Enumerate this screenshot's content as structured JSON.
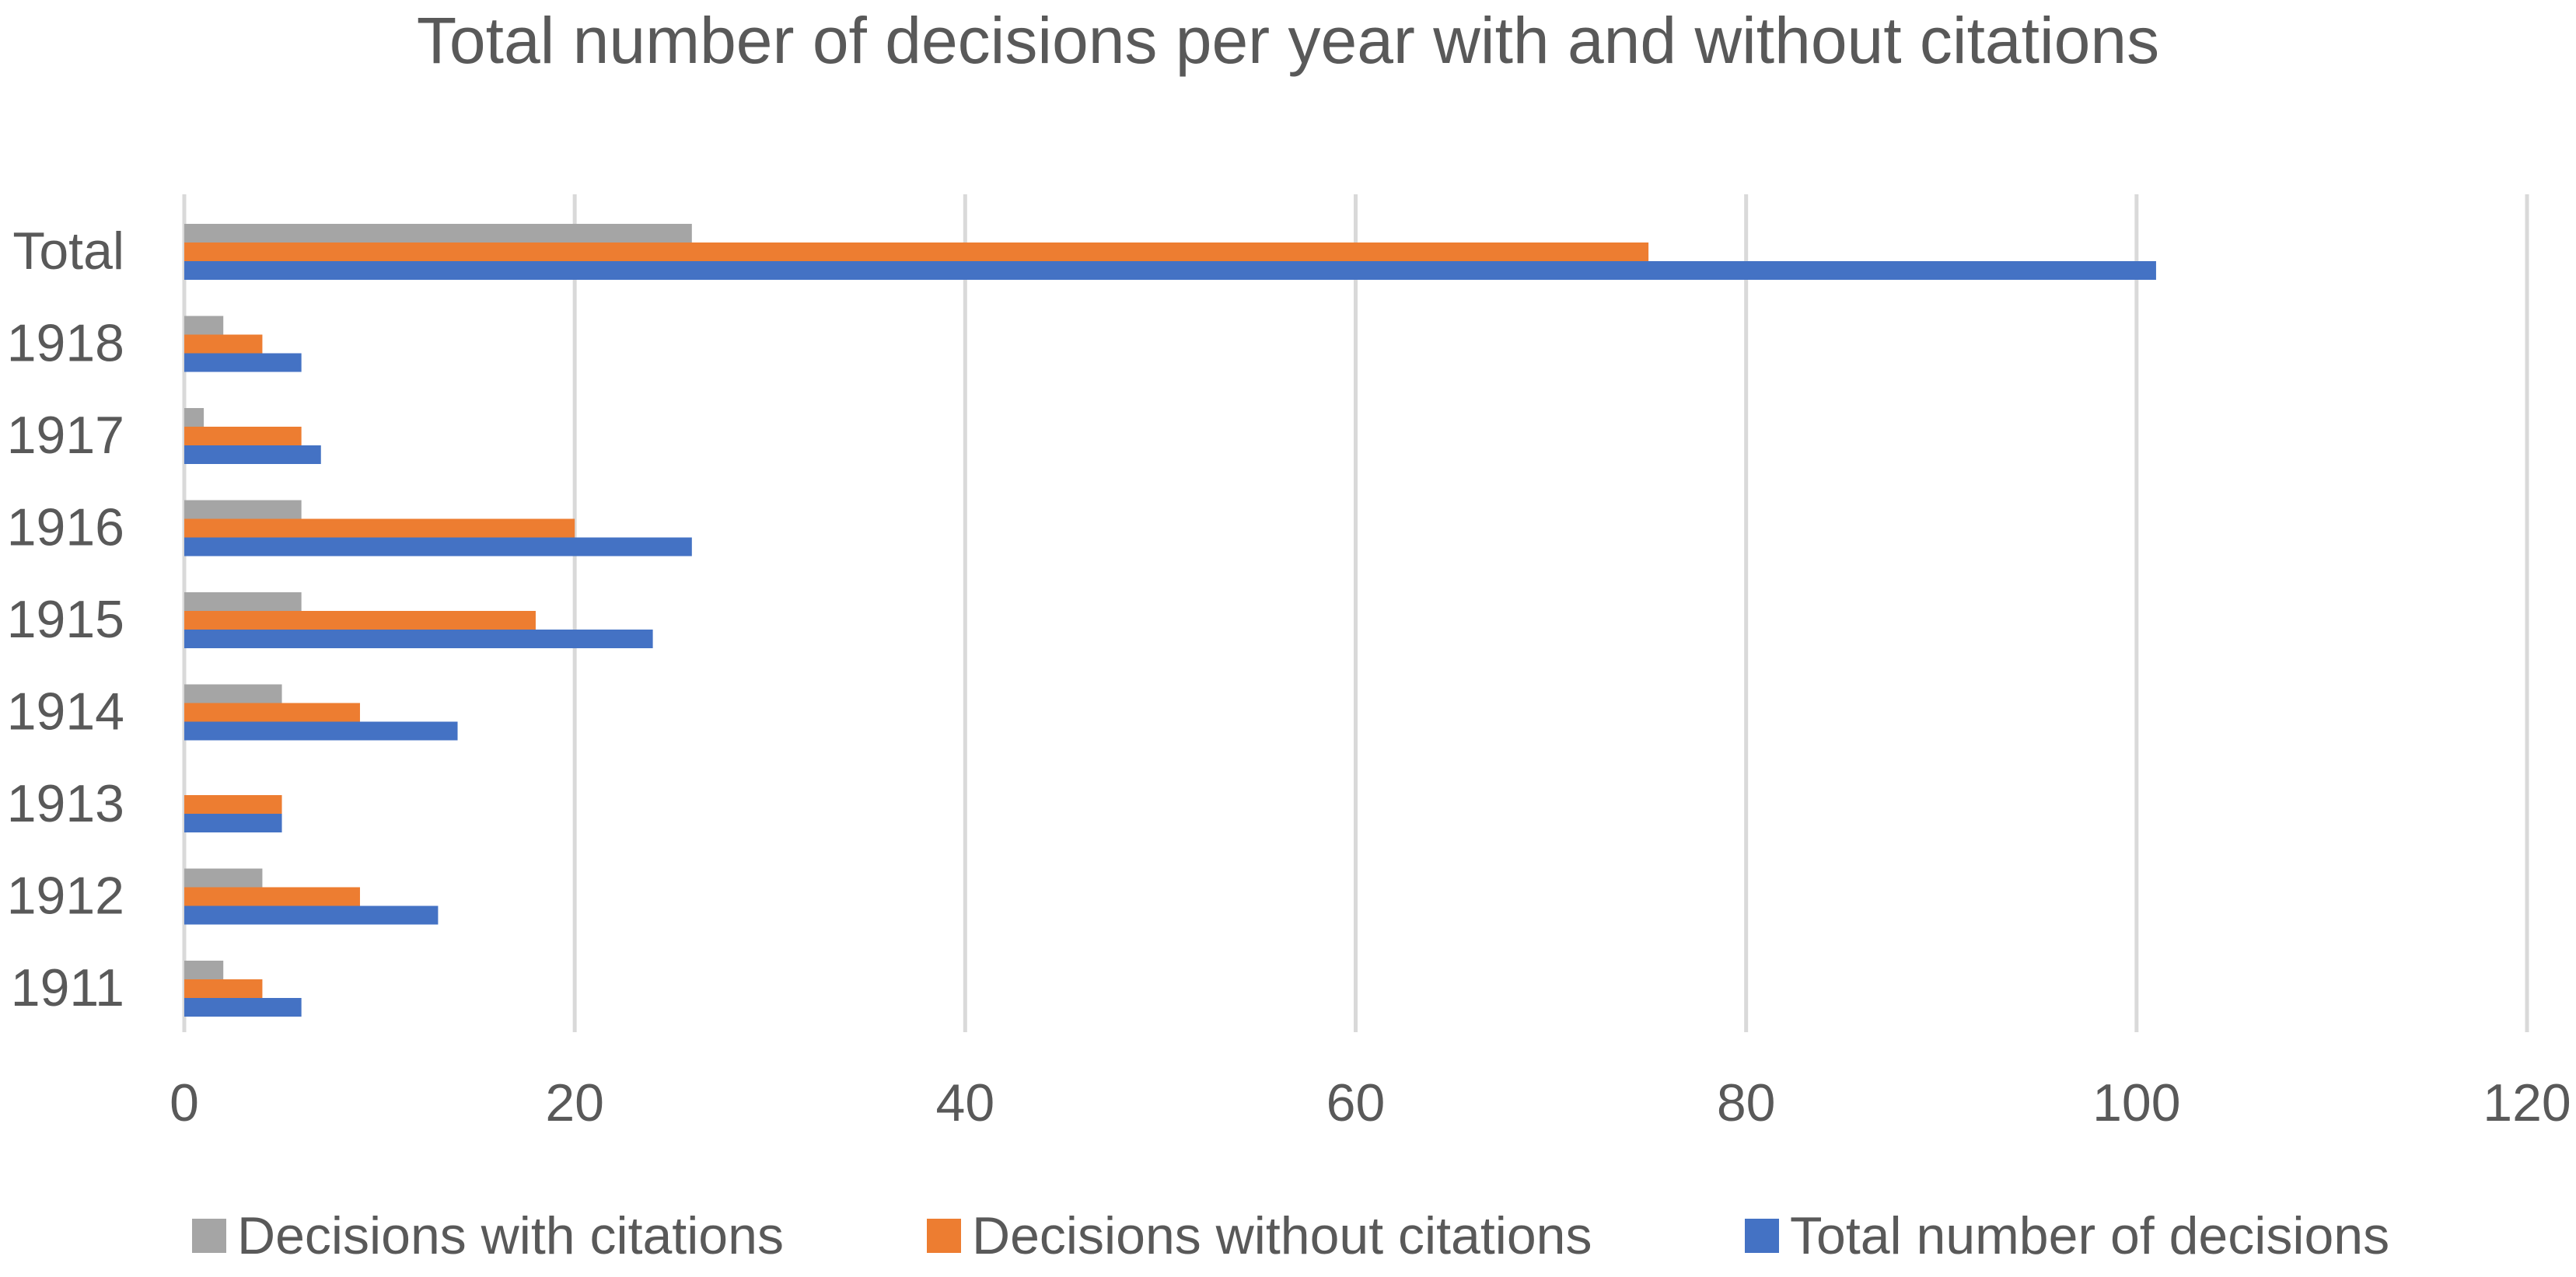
{
  "chart_data": {
    "type": "bar",
    "orientation": "horizontal",
    "title": "Total number of decisions per year with and without citations",
    "categories": [
      "Total",
      "1918",
      "1917",
      "1916",
      "1915",
      "1914",
      "1913",
      "1912",
      "1911"
    ],
    "series": [
      {
        "name": "Decisions with citations",
        "color": "#A5A5A5",
        "values": [
          26,
          2,
          1,
          6,
          6,
          5,
          0,
          4,
          2
        ]
      },
      {
        "name": "Decisions without citations",
        "color": "#ED7D31",
        "values": [
          75,
          4,
          6,
          20,
          18,
          9,
          5,
          9,
          4
        ]
      },
      {
        "name": "Total number of decisions",
        "color": "#4472C4",
        "values": [
          101,
          6,
          7,
          26,
          24,
          14,
          5,
          13,
          6
        ]
      }
    ],
    "xlim": [
      0,
      120
    ],
    "xticks": [
      "0",
      "20",
      "40",
      "60",
      "80",
      "100",
      "120"
    ],
    "grid": true,
    "legend_position": "bottom",
    "xlabel": "",
    "ylabel": ""
  }
}
